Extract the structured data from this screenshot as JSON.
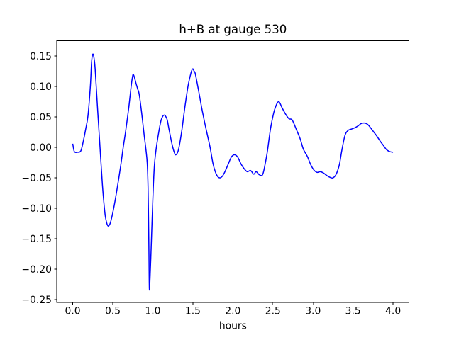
{
  "figure": {
    "background": "#ffffff"
  },
  "chart_data": {
    "type": "line",
    "title": "h+B at gauge 530",
    "xlabel": "hours",
    "ylabel": "",
    "grid": false,
    "legend": null,
    "line_color": "#0000ff",
    "line_width": 1.5,
    "spine_color": "#000000",
    "xlim": [
      -0.2,
      4.2
    ],
    "ylim": [
      -0.2549,
      0.1749
    ],
    "x_ticks": [
      0.0,
      0.5,
      1.0,
      1.5,
      2.0,
      2.5,
      3.0,
      3.5,
      4.0
    ],
    "x_tick_labels": [
      "0.0",
      "0.5",
      "1.0",
      "1.5",
      "2.0",
      "2.5",
      "3.0",
      "3.5",
      "4.0"
    ],
    "y_ticks": [
      0.15,
      0.1,
      0.05,
      0.0,
      -0.05,
      -0.1,
      -0.15,
      -0.2,
      -0.25
    ],
    "y_tick_labels": [
      "0.15",
      "0.10",
      "0.05",
      "0.00",
      "−0.05",
      "−0.10",
      "−0.15",
      "−0.20",
      "−0.25"
    ],
    "series": [
      {
        "name": "h+B",
        "points": [
          [
            0.0,
            0.006
          ],
          [
            0.02,
            -0.007
          ],
          [
            0.06,
            -0.008
          ],
          [
            0.1,
            -0.006
          ],
          [
            0.13,
            0.009
          ],
          [
            0.16,
            0.029
          ],
          [
            0.19,
            0.052
          ],
          [
            0.22,
            0.101
          ],
          [
            0.235,
            0.14
          ],
          [
            0.25,
            0.153
          ],
          [
            0.265,
            0.147
          ],
          [
            0.28,
            0.128
          ],
          [
            0.31,
            0.063
          ],
          [
            0.34,
            0.001
          ],
          [
            0.37,
            -0.061
          ],
          [
            0.4,
            -0.106
          ],
          [
            0.42,
            -0.122
          ],
          [
            0.44,
            -0.129
          ],
          [
            0.46,
            -0.127
          ],
          [
            0.48,
            -0.119
          ],
          [
            0.52,
            -0.094
          ],
          [
            0.56,
            -0.063
          ],
          [
            0.6,
            -0.029
          ],
          [
            0.63,
            0.0
          ],
          [
            0.66,
            0.026
          ],
          [
            0.7,
            0.066
          ],
          [
            0.73,
            0.101
          ],
          [
            0.745,
            0.115
          ],
          [
            0.755,
            0.12
          ],
          [
            0.77,
            0.115
          ],
          [
            0.79,
            0.105
          ],
          [
            0.81,
            0.096
          ],
          [
            0.83,
            0.087
          ],
          [
            0.86,
            0.057
          ],
          [
            0.89,
            0.022
          ],
          [
            0.915,
            -0.005
          ],
          [
            0.93,
            -0.026
          ],
          [
            0.94,
            -0.064
          ],
          [
            0.947,
            -0.123
          ],
          [
            0.952,
            -0.181
          ],
          [
            0.957,
            -0.233
          ],
          [
            0.965,
            -0.215
          ],
          [
            0.975,
            -0.181
          ],
          [
            0.99,
            -0.123
          ],
          [
            1.005,
            -0.068
          ],
          [
            1.02,
            -0.029
          ],
          [
            1.04,
            -0.004
          ],
          [
            1.07,
            0.022
          ],
          [
            1.1,
            0.043
          ],
          [
            1.12,
            0.05
          ],
          [
            1.14,
            0.053
          ],
          [
            1.16,
            0.051
          ],
          [
            1.18,
            0.045
          ],
          [
            1.2,
            0.031
          ],
          [
            1.24,
            0.005
          ],
          [
            1.27,
            -0.009
          ],
          [
            1.29,
            -0.012
          ],
          [
            1.32,
            -0.004
          ],
          [
            1.36,
            0.026
          ],
          [
            1.4,
            0.066
          ],
          [
            1.44,
            0.101
          ],
          [
            1.47,
            0.119
          ],
          [
            1.485,
            0.126
          ],
          [
            1.5,
            0.129
          ],
          [
            1.515,
            0.125
          ],
          [
            1.53,
            0.121
          ],
          [
            1.57,
            0.094
          ],
          [
            1.61,
            0.065
          ],
          [
            1.65,
            0.039
          ],
          [
            1.68,
            0.021
          ],
          [
            1.715,
            0.0
          ],
          [
            1.75,
            -0.026
          ],
          [
            1.78,
            -0.04
          ],
          [
            1.81,
            -0.048
          ],
          [
            1.84,
            -0.05
          ],
          [
            1.87,
            -0.047
          ],
          [
            1.9,
            -0.04
          ],
          [
            1.94,
            -0.028
          ],
          [
            1.98,
            -0.016
          ],
          [
            2.02,
            -0.012
          ],
          [
            2.06,
            -0.016
          ],
          [
            2.1,
            -0.027
          ],
          [
            2.14,
            -0.035
          ],
          [
            2.18,
            -0.04
          ],
          [
            2.22,
            -0.038
          ],
          [
            2.26,
            -0.044
          ],
          [
            2.29,
            -0.04
          ],
          [
            2.33,
            -0.045
          ],
          [
            2.37,
            -0.045
          ],
          [
            2.4,
            -0.029
          ],
          [
            2.43,
            -0.007
          ],
          [
            2.47,
            0.031
          ],
          [
            2.51,
            0.057
          ],
          [
            2.54,
            0.069
          ],
          [
            2.56,
            0.074
          ],
          [
            2.575,
            0.075
          ],
          [
            2.59,
            0.072
          ],
          [
            2.61,
            0.066
          ],
          [
            2.66,
            0.054
          ],
          [
            2.7,
            0.047
          ],
          [
            2.74,
            0.045
          ],
          [
            2.79,
            0.03
          ],
          [
            2.84,
            0.014
          ],
          [
            2.88,
            -0.003
          ],
          [
            2.93,
            -0.015
          ],
          [
            2.97,
            -0.028
          ],
          [
            3.01,
            -0.037
          ],
          [
            3.05,
            -0.041
          ],
          [
            3.09,
            -0.04
          ],
          [
            3.13,
            -0.042
          ],
          [
            3.17,
            -0.046
          ],
          [
            3.21,
            -0.049
          ],
          [
            3.25,
            -0.05
          ],
          [
            3.29,
            -0.044
          ],
          [
            3.33,
            -0.028
          ],
          [
            3.36,
            -0.005
          ],
          [
            3.4,
            0.02
          ],
          [
            3.44,
            0.028
          ],
          [
            3.48,
            0.03
          ],
          [
            3.52,
            0.032
          ],
          [
            3.56,
            0.035
          ],
          [
            3.6,
            0.039
          ],
          [
            3.64,
            0.04
          ],
          [
            3.68,
            0.038
          ],
          [
            3.72,
            0.032
          ],
          [
            3.76,
            0.025
          ],
          [
            3.8,
            0.018
          ],
          [
            3.84,
            0.01
          ],
          [
            3.88,
            0.003
          ],
          [
            3.92,
            -0.004
          ],
          [
            3.96,
            -0.007
          ],
          [
            4.0,
            -0.008
          ]
        ]
      }
    ]
  }
}
